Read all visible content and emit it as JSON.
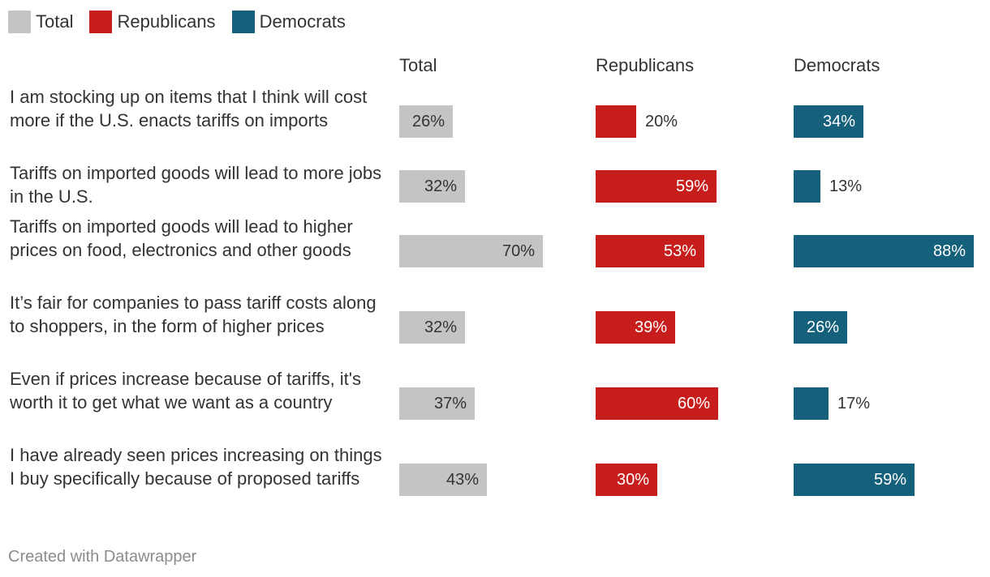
{
  "legend": [
    {
      "label": "Total",
      "color": "#c4c4c4"
    },
    {
      "label": "Republicans",
      "color": "#c71e1d"
    },
    {
      "label": "Democrats",
      "color": "#15607a"
    }
  ],
  "chart_data": {
    "type": "bar",
    "orientation": "horizontal",
    "title": "",
    "columns": [
      "Total",
      "Republicans",
      "Democrats"
    ],
    "categories": [
      "I am stocking up on items that I think will cost more if the U.S. enacts tariffs on imports",
      "Tariffs on imported goods will lead to more jobs in the U.S.",
      "Tariffs on imported goods will lead to higher prices on food, electronics and other goods",
      "It’s fair for companies to pass tariff costs along to shoppers, in the form of higher prices",
      "Even if prices increase because of tariffs, it's worth it to get what we want as a country",
      "I have already seen prices increasing on things I buy specifically because of proposed tariffs"
    ],
    "series": [
      {
        "name": "Total",
        "color": "#c4c4c4",
        "label_color": "#333333",
        "values": [
          26,
          32,
          70,
          32,
          37,
          43
        ]
      },
      {
        "name": "Republicans",
        "color": "#c71e1d",
        "label_color": "#ffffff",
        "values": [
          20,
          59,
          53,
          39,
          60,
          30
        ]
      },
      {
        "name": "Democrats",
        "color": "#15607a",
        "label_color": "#ffffff",
        "values": [
          34,
          13,
          88,
          26,
          17,
          59
        ]
      }
    ],
    "value_suffix": "%",
    "xlim": [
      0,
      88
    ]
  },
  "footer": "Created with Datawrapper"
}
